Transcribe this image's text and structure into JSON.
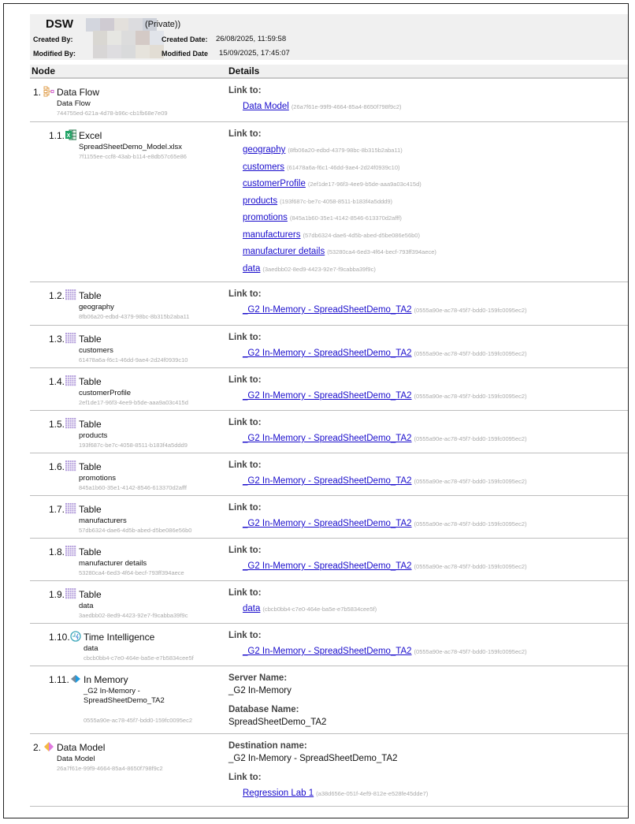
{
  "header": {
    "title": "DSW",
    "privacy": "(Private))",
    "created_by_label": "Created By:",
    "modified_by_label": "Modified By:",
    "created_date_label": "Created Date:",
    "created_date": "26/08/2025, 11:59:58",
    "modified_date_label": "Modified Date",
    "modified_date": "15/09/2025, 17:45:07"
  },
  "columns": {
    "node": "Node",
    "details": "Details"
  },
  "colors": {
    "link": "#1a0dcc",
    "guid": "#aaaaaa",
    "header_bg": "#f0f0f0"
  },
  "rows": [
    {
      "num": "1.",
      "level": 0,
      "icon": "data-flow-icon",
      "title": "Data Flow",
      "subtitle": "Data Flow",
      "guid": "744755ed-621a-4d78-b96c-cb1fb68e7e09",
      "details": [
        {
          "label": "Link to:",
          "links": [
            {
              "text": "Data Model",
              "guid": "(26a7f61e-99f9-4664-85a4-8650f798f9c2)"
            }
          ]
        }
      ]
    },
    {
      "num": "1.1.",
      "level": 1,
      "icon": "excel-icon",
      "title": "Excel",
      "subtitle": "SpreadSheetDemo_Model.xlsx",
      "guid": "7f1155ee-ccf8-43ab-b114-e8db57c65e86",
      "details": [
        {
          "label": "Link to:",
          "links": [
            {
              "text": "geography",
              "guid": "(8fb06a20-edbd-4379-98bc-8b315b2aba11)"
            },
            {
              "text": "customers",
              "guid": "(61478a6a-f6c1-46dd-9ae4-2d24f0939c10)"
            },
            {
              "text": "customerProfile",
              "guid": "(2ef1de17-96f3-4ee9-b5de-aaa9a03c415d)"
            },
            {
              "text": "products",
              "guid": "(193f687c-be7c-4058-8511-b183f4a5ddd9)"
            },
            {
              "text": "promotions",
              "guid": "(845a1b60-35e1-4142-8546-613370d2afff)"
            },
            {
              "text": "manufacturers",
              "guid": "(57db6324-dae6-4d5b-abed-d5be086e56b0)"
            },
            {
              "text": "manufacturer details",
              "guid": "(53280ca4-6ed3-4f64-becf-793ff394aece)"
            },
            {
              "text": "data",
              "guid": "(3aedbb02-8ed9-4423-92e7-f9cabba39f9c)"
            }
          ]
        }
      ]
    },
    {
      "num": "1.2.",
      "level": 1,
      "icon": "table-icon",
      "title": "Table",
      "subtitle": "geography",
      "guid": "8fb06a20-edbd-4379-98bc-8b315b2aba11",
      "details": [
        {
          "label": "Link to:",
          "links": [
            {
              "text": "_G2 In-Memory - SpreadSheetDemo_TA2",
              "guid": "(0555a90e-ac78-45f7-bdd0-159fc0095ec2)"
            }
          ]
        }
      ]
    },
    {
      "num": "1.3.",
      "level": 1,
      "icon": "table-icon",
      "title": "Table",
      "subtitle": "customers",
      "guid": "61478a6a-f6c1-46dd-9ae4-2d24f0939c10",
      "details": [
        {
          "label": "Link to:",
          "links": [
            {
              "text": "_G2 In-Memory - SpreadSheetDemo_TA2",
              "guid": "(0555a90e-ac78-45f7-bdd0-159fc0095ec2)"
            }
          ]
        }
      ]
    },
    {
      "num": "1.4.",
      "level": 1,
      "icon": "table-icon",
      "title": "Table",
      "subtitle": "customerProfile",
      "guid": "2ef1de17-96f3-4ee9-b5de-aaa9a03c415d",
      "details": [
        {
          "label": "Link to:",
          "links": [
            {
              "text": "_G2 In-Memory - SpreadSheetDemo_TA2",
              "guid": "(0555a90e-ac78-45f7-bdd0-159fc0095ec2)"
            }
          ]
        }
      ]
    },
    {
      "num": "1.5.",
      "level": 1,
      "icon": "table-icon",
      "title": "Table",
      "subtitle": "products",
      "guid": "193f687c-be7c-4058-8511-b183f4a5ddd9",
      "details": [
        {
          "label": "Link to:",
          "links": [
            {
              "text": "_G2 In-Memory - SpreadSheetDemo_TA2",
              "guid": "(0555a90e-ac78-45f7-bdd0-159fc0095ec2)"
            }
          ]
        }
      ]
    },
    {
      "num": "1.6.",
      "level": 1,
      "icon": "table-icon",
      "title": "Table",
      "subtitle": "promotions",
      "guid": "845a1b60-35e1-4142-8546-613370d2afff",
      "details": [
        {
          "label": "Link to:",
          "links": [
            {
              "text": "_G2 In-Memory - SpreadSheetDemo_TA2",
              "guid": "(0555a90e-ac78-45f7-bdd0-159fc0095ec2)"
            }
          ]
        }
      ]
    },
    {
      "num": "1.7.",
      "level": 1,
      "icon": "table-icon",
      "title": "Table",
      "subtitle": "manufacturers",
      "guid": "57db6324-dae6-4d5b-abed-d5be086e56b0",
      "details": [
        {
          "label": "Link to:",
          "links": [
            {
              "text": "_G2 In-Memory - SpreadSheetDemo_TA2",
              "guid": "(0555a90e-ac78-45f7-bdd0-159fc0095ec2)"
            }
          ]
        }
      ]
    },
    {
      "num": "1.8.",
      "level": 1,
      "icon": "table-icon",
      "title": "Table",
      "subtitle": "manufacturer details",
      "guid": "53280ca4-6ed3-4f64-becf-793ff394aece",
      "details": [
        {
          "label": "Link to:",
          "links": [
            {
              "text": "_G2 In-Memory - SpreadSheetDemo_TA2",
              "guid": "(0555a90e-ac78-45f7-bdd0-159fc0095ec2)"
            }
          ]
        }
      ]
    },
    {
      "num": "1.9.",
      "level": 1,
      "icon": "table-icon",
      "title": "Table",
      "subtitle": "data",
      "guid": "3aedbb02-8ed9-4423-92e7-f9cabba39f9c",
      "details": [
        {
          "label": "Link to:",
          "links": [
            {
              "text": "data",
              "guid": "(cbcb0bb4-c7e0-464e-ba5e-e7b5834cee5f)"
            }
          ]
        }
      ]
    },
    {
      "num": "1.10.",
      "level": 1,
      "icon": "time-intelligence-icon",
      "title": "Time Intelligence",
      "subtitle": "data",
      "guid": "cbcb0bb4-c7e0-464e-ba5e-e7b5834cee5f",
      "details": [
        {
          "label": "Link to:",
          "links": [
            {
              "text": "_G2 In-Memory - SpreadSheetDemo_TA2",
              "guid": "(0555a90e-ac78-45f7-bdd0-159fc0095ec2)"
            }
          ]
        }
      ]
    },
    {
      "num": "1.11.",
      "level": 1,
      "icon": "in-memory-icon",
      "title": "In Memory",
      "subtitle": "_G2 In-Memory - SpreadSheetDemo_TA2",
      "guid": "0555a90e-ac78-45f7-bdd0-159fc0095ec2",
      "details": [
        {
          "label": "Server Name:",
          "value": "_G2 In-Memory"
        },
        {
          "label": "Database Name:",
          "value": "SpreadSheetDemo_TA2"
        }
      ]
    },
    {
      "num": "2.",
      "level": 0,
      "icon": "data-model-icon",
      "title": "Data Model",
      "subtitle": "Data Model",
      "guid": "26a7f61e-99f9-4664-85a4-8650f798f9c2",
      "details": [
        {
          "label": "Destination name:",
          "value": "_G2 In-Memory - SpreadSheetDemo_TA2"
        },
        {
          "label": "Link to:",
          "links": [
            {
              "text": "Regression Lab 1",
              "guid": "(a38d656e-051f-4ef9-812e-e528fe45dde7)"
            }
          ]
        }
      ]
    }
  ]
}
